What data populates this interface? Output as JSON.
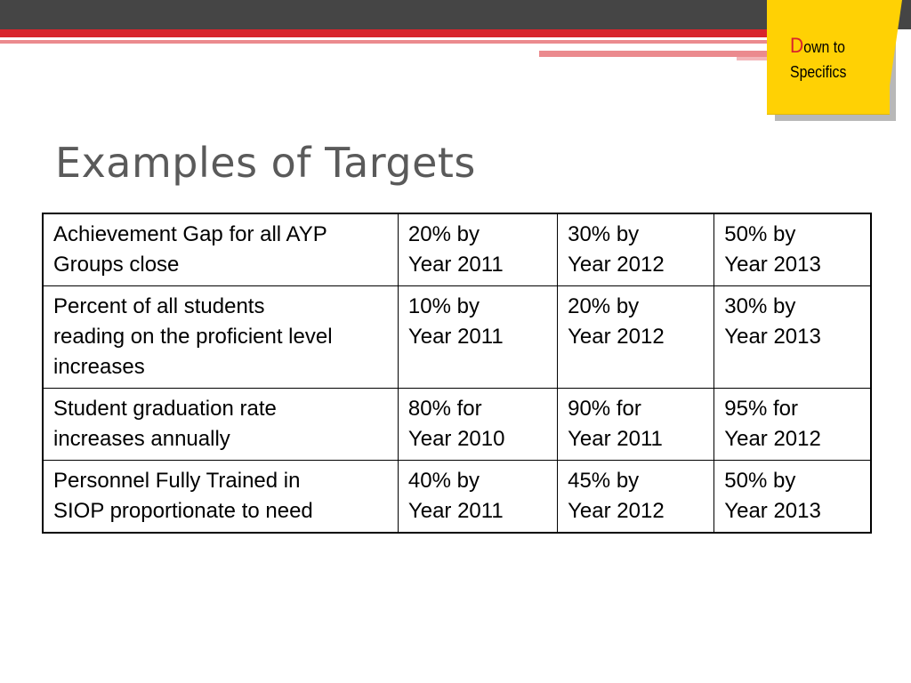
{
  "badge": {
    "first_letter": "D",
    "rest_line1": "own to",
    "line2": "Specifics"
  },
  "title": "Examples of Targets",
  "table": {
    "rows": [
      {
        "goal": [
          "Achievement Gap for all AYP",
          "Groups close"
        ],
        "targets": [
          [
            "20% by",
            "Year 2011"
          ],
          [
            "30% by",
            "Year 2012"
          ],
          [
            "50% by",
            "Year 2013"
          ]
        ]
      },
      {
        "goal": [
          "Percent of all students",
          "reading on the proficient level",
          "increases"
        ],
        "targets": [
          [
            "10% by",
            "Year 2011"
          ],
          [
            "20% by",
            "Year 2012"
          ],
          [
            "30% by",
            "Year 2013"
          ]
        ]
      },
      {
        "goal": [
          "Student graduation rate",
          "increases annually"
        ],
        "targets": [
          [
            "80% for",
            "Year 2010"
          ],
          [
            "90% for",
            "Year 2011"
          ],
          [
            "95% for",
            "Year 2012"
          ]
        ]
      },
      {
        "goal": [
          "Personnel Fully Trained in",
          "SIOP proportionate to need"
        ],
        "targets": [
          [
            "40%  by",
            "Year 2011"
          ],
          [
            "45% by",
            "Year 2012"
          ],
          [
            "50% by",
            "Year 2013"
          ]
        ]
      }
    ]
  }
}
